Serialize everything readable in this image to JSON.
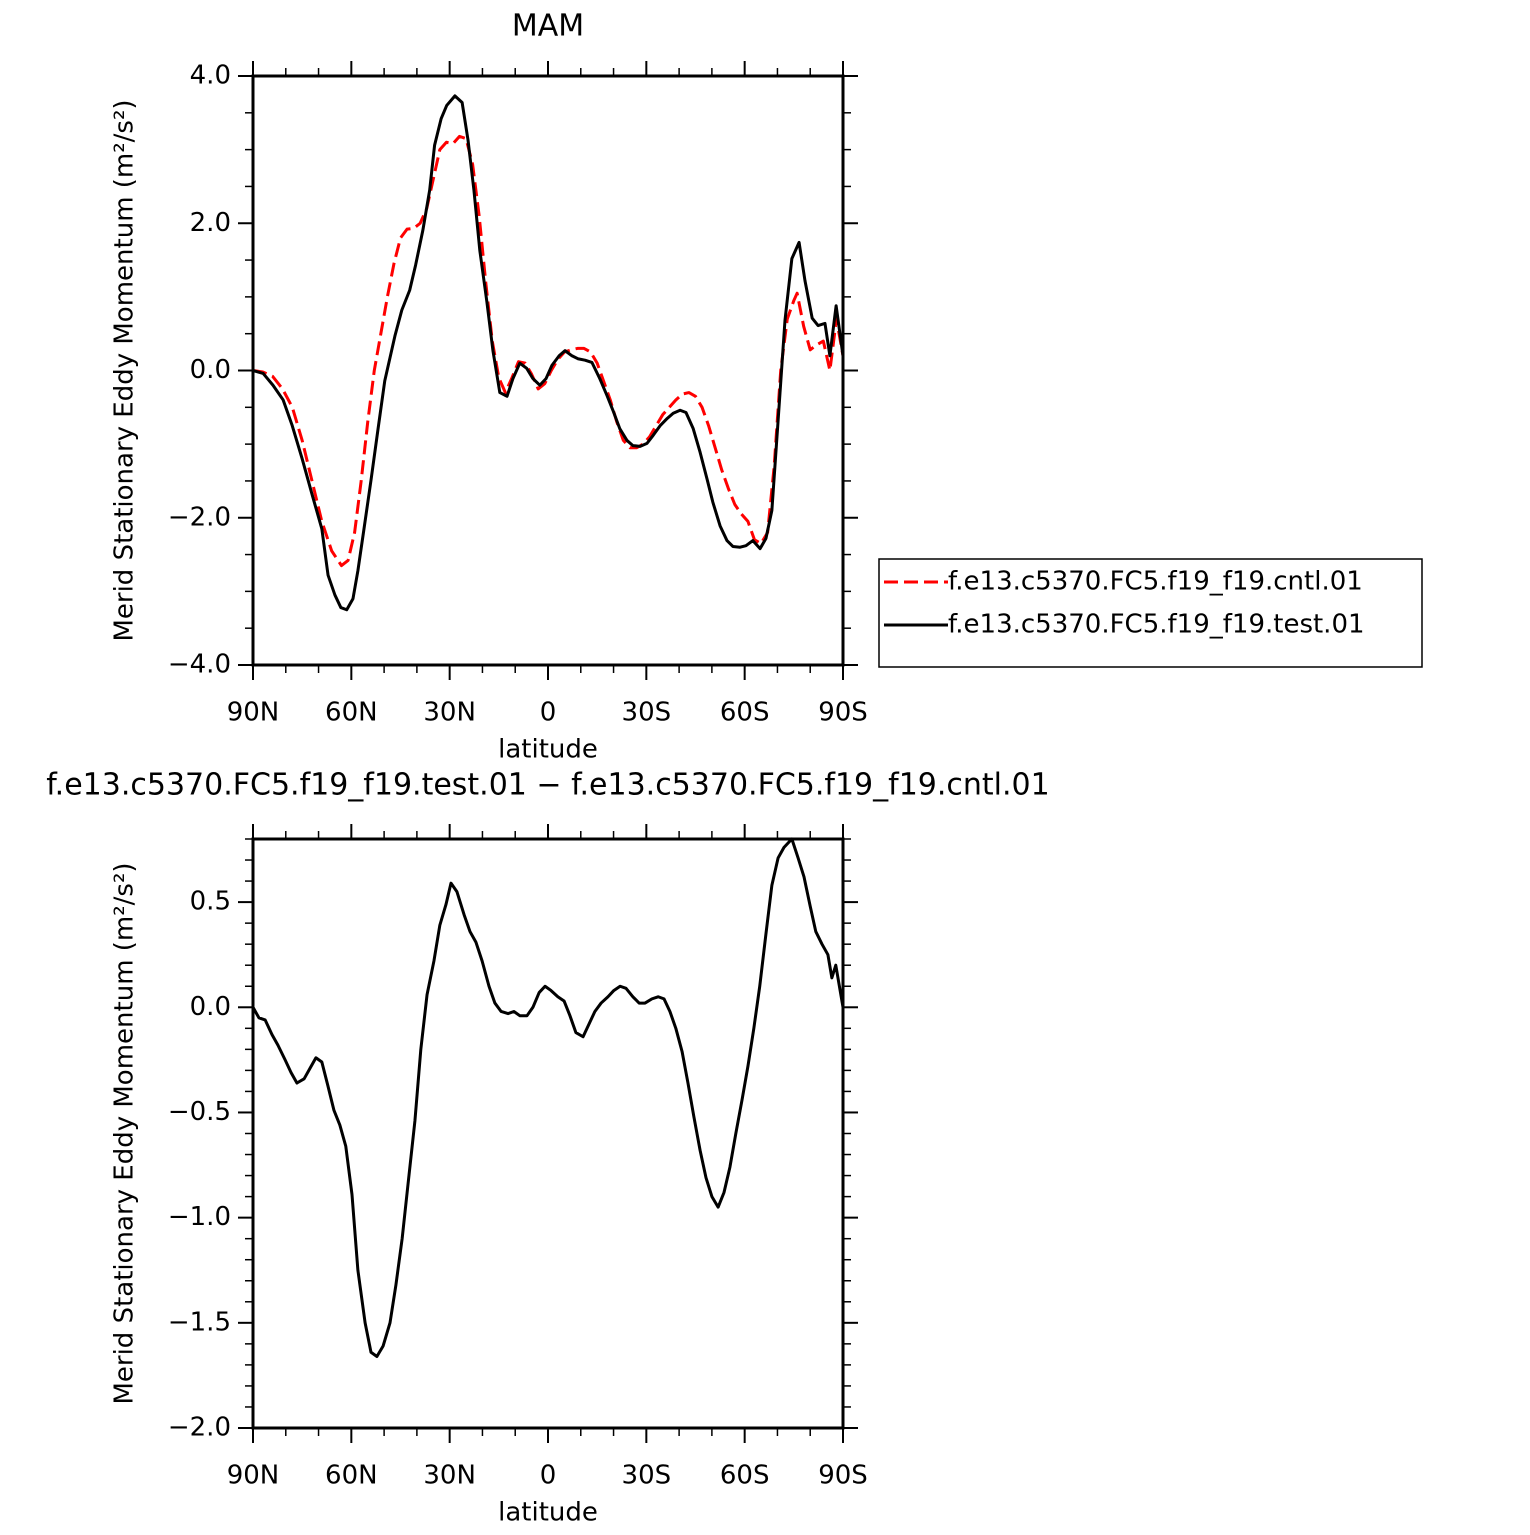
{
  "chart_data": [
    {
      "type": "line",
      "title": "MAM",
      "xlabel": "latitude",
      "ylabel": "Merid Stationary Eddy Momentum (m²/s²)",
      "xlim": [
        90,
        -90
      ],
      "xticks": [
        {
          "value": 90,
          "label": "90N"
        },
        {
          "value": 60,
          "label": "60N"
        },
        {
          "value": 30,
          "label": "30N"
        },
        0,
        {
          "value": -30,
          "label": "30S"
        },
        {
          "value": -60,
          "label": "60S"
        },
        {
          "value": -90,
          "label": "90S"
        }
      ],
      "ylim": [
        -4,
        4
      ],
      "yticks": [
        {
          "value": -4,
          "label": "−4.0"
        },
        {
          "value": -2,
          "label": "−2.0"
        },
        {
          "value": 0,
          "label": "0.0"
        },
        {
          "value": 2,
          "label": "2.0"
        },
        {
          "value": 4,
          "label": "4.0"
        }
      ],
      "legend": "right",
      "series": [
        {
          "name": "f.e13.c5370.FC5.f19_f19.cntl.01",
          "color": "#ff0000",
          "dash": "dashed",
          "x": [
            90,
            87,
            84,
            81,
            78,
            75,
            72,
            69,
            66,
            63,
            61,
            59,
            57,
            55,
            53,
            51,
            49,
            47,
            45,
            43,
            41,
            39,
            37,
            35,
            33,
            31,
            29,
            27,
            25,
            23,
            21,
            19,
            17,
            15,
            13,
            11,
            9,
            7,
            5,
            3,
            1,
            -1,
            -3,
            -5,
            -7,
            -9,
            -11,
            -13,
            -15,
            -17,
            -19,
            -21,
            -23,
            -25,
            -27,
            -29,
            -31,
            -33,
            -35,
            -37,
            -39,
            -41,
            -43,
            -45,
            -47,
            -49,
            -51,
            -53,
            -55,
            -57,
            -59,
            -61,
            -63,
            -65,
            -67,
            -69,
            -71,
            -73,
            -75,
            -76,
            -78,
            -80,
            -82,
            -84,
            -86,
            -88,
            -90
          ],
          "values": [
            0.0,
            -0.02,
            -0.08,
            -0.25,
            -0.5,
            -0.95,
            -1.5,
            -2.05,
            -2.45,
            -2.65,
            -2.58,
            -2.2,
            -1.5,
            -0.7,
            0.0,
            0.5,
            1.0,
            1.45,
            1.8,
            1.92,
            1.93,
            2.0,
            2.2,
            2.6,
            3.0,
            3.1,
            3.08,
            3.18,
            3.15,
            2.8,
            2.1,
            1.2,
            0.4,
            -0.1,
            -0.3,
            -0.1,
            0.12,
            0.1,
            -0.05,
            -0.25,
            -0.18,
            0.0,
            0.15,
            0.25,
            0.28,
            0.3,
            0.3,
            0.25,
            0.1,
            -0.15,
            -0.4,
            -0.7,
            -0.95,
            -1.05,
            -1.05,
            -1.0,
            -0.9,
            -0.75,
            -0.6,
            -0.5,
            -0.4,
            -0.32,
            -0.3,
            -0.35,
            -0.5,
            -0.75,
            -1.05,
            -1.35,
            -1.6,
            -1.82,
            -1.95,
            -2.05,
            -2.3,
            -2.35,
            -2.2,
            -1.3,
            0.0,
            0.7,
            0.95,
            1.05,
            0.6,
            0.28,
            0.35,
            0.4,
            0.0,
            0.7,
            0.2
          ]
        },
        {
          "name": "f.e13.c5370.FC5.f19_f19.test.01",
          "color": "#000000",
          "dash": "solid",
          "x": [
            90,
            86.9,
            83.9,
            80.8,
            78.1,
            75,
            72,
            69,
            67.1,
            65,
            63.2,
            61.4,
            59.5,
            58,
            56.2,
            54,
            51.9,
            49.8,
            46.7,
            44.6,
            42.2,
            40.4,
            38.2,
            36.1,
            34.6,
            32.6,
            30.9,
            28.4,
            26.2,
            24.4,
            22.6,
            20.8,
            18.7,
            16.8,
            14.7,
            12.5,
            10.7,
            8.6,
            6.5,
            4.6,
            2.5,
            0.6,
            -1.2,
            -3.4,
            -5.2,
            -7.3,
            -9.1,
            -11.3,
            -13.4,
            -15.8,
            -18,
            -19.8,
            -21.9,
            -24.1,
            -25.9,
            -28.1,
            -30.2,
            -32.1,
            -34.2,
            -36.4,
            -38.2,
            -40.3,
            -42.1,
            -44.3,
            -46.4,
            -48.5,
            -50.3,
            -52.5,
            -54.6,
            -56.4,
            -58.6,
            -60.4,
            -62.5,
            -64.7,
            -66.5,
            -68.3,
            -70.2,
            -72.3,
            -74.4,
            -76.6,
            -78.4,
            -80.6,
            -82.4,
            -84.5,
            -86,
            -87.9,
            -90
          ],
          "values": [
            0.0,
            -0.04,
            -0.2,
            -0.4,
            -0.74,
            -1.2,
            -1.68,
            -2.15,
            -2.78,
            -3.05,
            -3.22,
            -3.25,
            -3.1,
            -2.72,
            -2.17,
            -1.49,
            -0.81,
            -0.14,
            0.47,
            0.82,
            1.09,
            1.43,
            1.9,
            2.45,
            3.06,
            3.42,
            3.6,
            3.73,
            3.64,
            3.13,
            2.45,
            1.63,
            0.95,
            0.27,
            -0.3,
            -0.35,
            -0.11,
            0.1,
            0.03,
            -0.11,
            -0.2,
            -0.11,
            0.07,
            0.2,
            0.27,
            0.2,
            0.16,
            0.14,
            0.11,
            -0.11,
            -0.34,
            -0.54,
            -0.79,
            -0.95,
            -1.02,
            -1.03,
            -0.99,
            -0.88,
            -0.75,
            -0.65,
            -0.58,
            -0.54,
            -0.57,
            -0.79,
            -1.11,
            -1.47,
            -1.79,
            -2.11,
            -2.31,
            -2.39,
            -2.4,
            -2.38,
            -2.31,
            -2.42,
            -2.28,
            -1.9,
            -0.68,
            0.68,
            1.52,
            1.74,
            1.22,
            0.71,
            0.61,
            0.64,
            0.2,
            0.88,
            0.2
          ]
        }
      ]
    },
    {
      "type": "line",
      "title": "f.e13.c5370.FC5.f19_f19.test.01 − f.e13.c5370.FC5.f19_f19.cntl.01",
      "xlabel": "latitude",
      "ylabel": "Merid Stationary Eddy Momentum (m²/s²)",
      "xlim": [
        90,
        -90
      ],
      "xticks": [
        {
          "value": 90,
          "label": "90N"
        },
        {
          "value": 60,
          "label": "60N"
        },
        {
          "value": 30,
          "label": "30N"
        },
        0,
        {
          "value": -30,
          "label": "30S"
        },
        {
          "value": -60,
          "label": "60S"
        },
        {
          "value": -90,
          "label": "90S"
        }
      ],
      "ylim": [
        -2,
        0.8
      ],
      "yticks": [
        {
          "value": -2,
          "label": "−2.0"
        },
        {
          "value": -1.5,
          "label": "−1.5"
        },
        {
          "value": -1,
          "label": "−1.0"
        },
        {
          "value": -0.5,
          "label": "−0.5"
        },
        {
          "value": 0,
          "label": "0.0"
        },
        0.5
      ],
      "series": [
        {
          "color": "#000000",
          "dash": "solid",
          "x": [
            90,
            88.2,
            86.3,
            84.2,
            82.4,
            80.2,
            78.4,
            76.6,
            74.4,
            72.6,
            70.8,
            69,
            67.2,
            65.3,
            63.5,
            61.7,
            59.8,
            58,
            55.8,
            54,
            52.2,
            50.3,
            48.2,
            46.4,
            44.5,
            42.7,
            40.6,
            38.8,
            36.9,
            34.8,
            33,
            31.1,
            29.6,
            27.8,
            25.6,
            23.8,
            22,
            20.1,
            18,
            16.2,
            14.3,
            12.2,
            10.4,
            8.6,
            6.4,
            4.6,
            2.7,
            0.9,
            -0.9,
            -3,
            -4.9,
            -6.7,
            -8.5,
            -10.7,
            -12.5,
            -14.3,
            -16.2,
            -18.3,
            -20.1,
            -22,
            -23.8,
            -25.9,
            -27.8,
            -29.6,
            -31.7,
            -33.6,
            -35.4,
            -37.2,
            -39,
            -40.9,
            -42.7,
            -44.5,
            -46.4,
            -48.2,
            -50,
            -51.9,
            -53.7,
            -55.5,
            -57.3,
            -59.2,
            -61,
            -62.8,
            -64.6,
            -66.5,
            -68.3,
            -70.2,
            -72,
            -74.4,
            -76.3,
            -78.1,
            -80,
            -81.7,
            -83.6,
            -85.4,
            -86.6,
            -87.8,
            -90
          ],
          "values": [
            0.0,
            -0.05,
            -0.06,
            -0.13,
            -0.18,
            -0.25,
            -0.31,
            -0.36,
            -0.34,
            -0.29,
            -0.24,
            -0.26,
            -0.37,
            -0.49,
            -0.56,
            -0.66,
            -0.89,
            -1.25,
            -1.5,
            -1.64,
            -1.66,
            -1.61,
            -1.5,
            -1.32,
            -1.1,
            -0.84,
            -0.54,
            -0.2,
            0.06,
            0.22,
            0.39,
            0.49,
            0.59,
            0.55,
            0.44,
            0.36,
            0.31,
            0.22,
            0.1,
            0.02,
            -0.02,
            -0.03,
            -0.02,
            -0.04,
            -0.04,
            0.0,
            0.07,
            0.1,
            0.08,
            0.05,
            0.03,
            -0.04,
            -0.12,
            -0.14,
            -0.08,
            -0.02,
            0.02,
            0.05,
            0.08,
            0.1,
            0.09,
            0.05,
            0.02,
            0.02,
            0.04,
            0.05,
            0.04,
            -0.02,
            -0.1,
            -0.21,
            -0.36,
            -0.52,
            -0.68,
            -0.81,
            -0.9,
            -0.95,
            -0.88,
            -0.76,
            -0.6,
            -0.44,
            -0.28,
            -0.1,
            0.1,
            0.35,
            0.58,
            0.71,
            0.76,
            0.8,
            0.71,
            0.62,
            0.48,
            0.36,
            0.3,
            0.25,
            0.14,
            0.2,
            0.0
          ]
        }
      ]
    }
  ]
}
